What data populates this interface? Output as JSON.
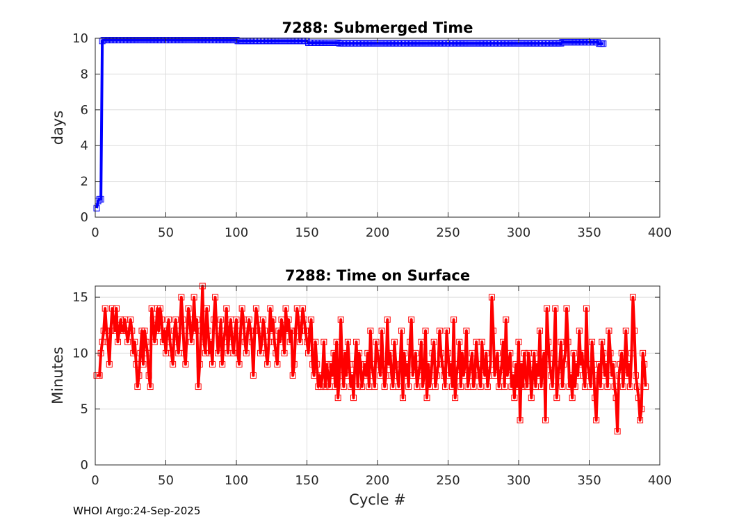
{
  "footer": "WHOI Argo:24-Sep-2025",
  "chart_data": [
    {
      "type": "line",
      "title": "7288: Submerged Time",
      "xlabel": "",
      "ylabel": "days",
      "xlim": [
        0,
        400
      ],
      "ylim": [
        0,
        10
      ],
      "xticks": [
        0,
        50,
        100,
        150,
        200,
        250,
        300,
        350,
        400
      ],
      "yticks": [
        0,
        2,
        4,
        6,
        8,
        10
      ],
      "grid": true,
      "color": "#0000ff",
      "marker": "square",
      "series": [
        {
          "segments": [
            {
              "x_start": 1,
              "x_end": 1,
              "value": 0.5
            },
            {
              "x_start": 2,
              "x_end": 2,
              "value": 0.9
            },
            {
              "x_start": 3,
              "x_end": 4,
              "value": 1.0
            },
            {
              "x_start": 5,
              "x_end": 5,
              "value": 9.85
            },
            {
              "x_start": 6,
              "x_end": 100,
              "value": 9.9
            },
            {
              "x_start": 101,
              "x_end": 150,
              "value": 9.85
            },
            {
              "x_start": 151,
              "x_end": 172,
              "value": 9.75
            },
            {
              "x_start": 173,
              "x_end": 330,
              "value": 9.72
            },
            {
              "x_start": 331,
              "x_end": 356,
              "value": 9.78
            },
            {
              "x_start": 357,
              "x_end": 360,
              "value": 9.7
            }
          ]
        }
      ]
    },
    {
      "type": "line",
      "title": "7288: Time on Surface",
      "xlabel": "Cycle #",
      "ylabel": "Minutes",
      "xlim": [
        0,
        400
      ],
      "ylim": [
        0,
        16
      ],
      "xticks": [
        0,
        50,
        100,
        150,
        200,
        250,
        300,
        350,
        400
      ],
      "yticks": [
        0,
        5,
        10,
        15
      ],
      "grid": true,
      "color": "#ff0000",
      "marker": "square",
      "series": [
        {
          "x_start": 1,
          "values": [
            8,
            8,
            8,
            10,
            11,
            12,
            14,
            12,
            11,
            9,
            12,
            14,
            13,
            12,
            14,
            11,
            12,
            13,
            12,
            12,
            13,
            12,
            11,
            12,
            13,
            12,
            10,
            11,
            9,
            7,
            8,
            10,
            12,
            9,
            12,
            11,
            10,
            8,
            7,
            14,
            13,
            11,
            12,
            14,
            12,
            14,
            13,
            11,
            12,
            10,
            12,
            13,
            11,
            10,
            9,
            12,
            13,
            11,
            10,
            12,
            15,
            13,
            10,
            9,
            12,
            14,
            13,
            11,
            12,
            15,
            12,
            13,
            7,
            9,
            12,
            16,
            11,
            10,
            14,
            12,
            10,
            11,
            9,
            13,
            15,
            12,
            10,
            11,
            13,
            9,
            11,
            12,
            14,
            10,
            12,
            13,
            11,
            10,
            12,
            13,
            10,
            9,
            12,
            14,
            13,
            11,
            10,
            12,
            13,
            12,
            11,
            8,
            12,
            14,
            13,
            12,
            10,
            11,
            13,
            12,
            10,
            9,
            11,
            14,
            12,
            13,
            11,
            10,
            9,
            12,
            11,
            13,
            12,
            10,
            14,
            12,
            13,
            11,
            12,
            8,
            9,
            12,
            14,
            13,
            11,
            12,
            14,
            13,
            12,
            11,
            10,
            12,
            13,
            9,
            8,
            11,
            9,
            7,
            8,
            7,
            8,
            11,
            7,
            9,
            8,
            7,
            9,
            8,
            10,
            7,
            11,
            6,
            8,
            13,
            9,
            7,
            10,
            8,
            11,
            9,
            7,
            8,
            6,
            9,
            11,
            7,
            10,
            9,
            7,
            8,
            9,
            8,
            10,
            7,
            12,
            9,
            8,
            7,
            11,
            10,
            9,
            8,
            12,
            9,
            7,
            8,
            13,
            9,
            10,
            8,
            7,
            11,
            9,
            8,
            7,
            9,
            12,
            6,
            10,
            8,
            9,
            7,
            11,
            13,
            8,
            9,
            10,
            7,
            8,
            9,
            11,
            7,
            8,
            12,
            6,
            9,
            7,
            8,
            10,
            11,
            7,
            8,
            9,
            12,
            10,
            9,
            8,
            7,
            12,
            10,
            8,
            9,
            7,
            13,
            6,
            8,
            9,
            11,
            7,
            10,
            8,
            9,
            12,
            7,
            8,
            9,
            10,
            7,
            8,
            11,
            9,
            8,
            7,
            11,
            9,
            8,
            10,
            7,
            8,
            9,
            15,
            12,
            8,
            9,
            10,
            7,
            8,
            9,
            11,
            7,
            13,
            8,
            9,
            10,
            7,
            8,
            6,
            9,
            7,
            11,
            4,
            9,
            7,
            10,
            8,
            7,
            10,
            9,
            6,
            8,
            10,
            7,
            9,
            8,
            12,
            7,
            9,
            10,
            4,
            14,
            11,
            9,
            8,
            7,
            10,
            14,
            6,
            8,
            9,
            11,
            7,
            9,
            10,
            14,
            11,
            7,
            8,
            6,
            10,
            7,
            9,
            8,
            12,
            9,
            10,
            8,
            7,
            14,
            9,
            8,
            7,
            11,
            9,
            6,
            4,
            8,
            9,
            7,
            11,
            10,
            8,
            9,
            7,
            12,
            10,
            8,
            9,
            7,
            6,
            3,
            8,
            9,
            10,
            7,
            9,
            12,
            8,
            9,
            7,
            10,
            15,
            12,
            8,
            7,
            6,
            4,
            5,
            10,
            9,
            7
          ]
        }
      ]
    }
  ]
}
